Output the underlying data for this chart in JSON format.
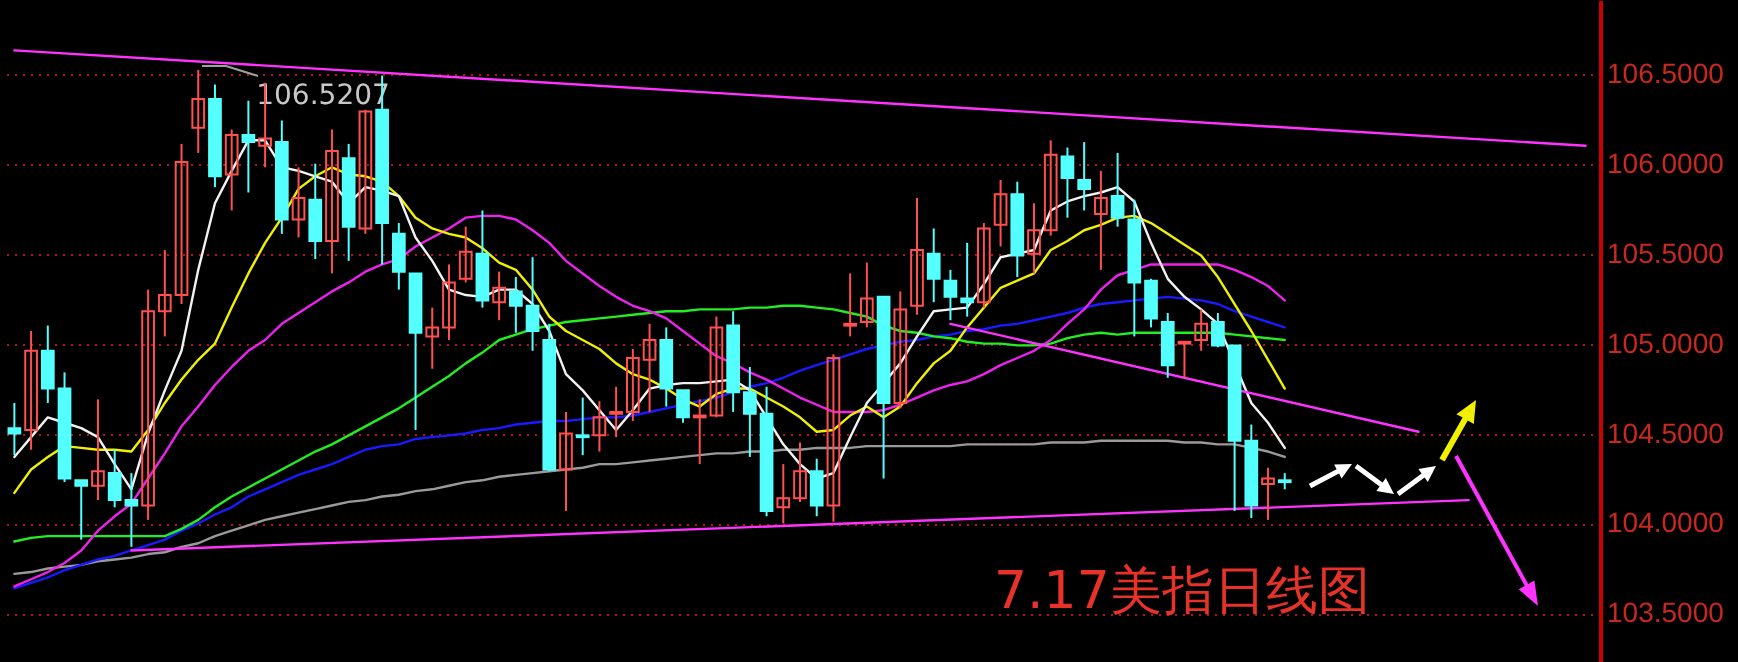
{
  "chart_data": {
    "type": "candlestick",
    "title": "7.17美指日线图",
    "categories": [
      null,
      null,
      null,
      null,
      null,
      null,
      null,
      null,
      null,
      null,
      null,
      null,
      null,
      null,
      null,
      null,
      null,
      null,
      null,
      null,
      null,
      null,
      null,
      null,
      null,
      null,
      null,
      null,
      null,
      null,
      null,
      null,
      null,
      null,
      null,
      null,
      null,
      null,
      null,
      null,
      null,
      null,
      null,
      null,
      null,
      null,
      null,
      null,
      null,
      null,
      null,
      null,
      null,
      null,
      null,
      null,
      null,
      null,
      null,
      null,
      null,
      null,
      null,
      null,
      null,
      null,
      null,
      null,
      null,
      null,
      null,
      null,
      null,
      null,
      null,
      null,
      null,
      null,
      null,
      null,
      null,
      null,
      null,
      null,
      null,
      null,
      null,
      null,
      null,
      null,
      null,
      null,
      null,
      null,
      null
    ],
    "ohlc": [
      [
        104.53,
        104.67,
        104.38,
        104.5
      ],
      [
        104.52,
        105.07,
        104.41,
        104.96
      ],
      [
        104.96,
        105.1,
        104.67,
        104.75
      ],
      [
        104.75,
        104.84,
        104.23,
        104.25
      ],
      [
        104.24,
        104.24,
        103.91,
        104.21
      ],
      [
        104.21,
        104.69,
        104.13,
        104.29
      ],
      [
        104.28,
        104.41,
        104.09,
        104.13
      ],
      [
        104.13,
        104.28,
        103.87,
        104.1
      ],
      [
        104.1,
        105.3,
        104.02,
        105.18
      ],
      [
        105.18,
        105.52,
        105.04,
        105.27
      ],
      [
        105.27,
        106.11,
        105.22,
        106.01
      ],
      [
        106.2,
        106.5207,
        106.06,
        106.36
      ],
      [
        106.36,
        106.44,
        105.87,
        105.93
      ],
      [
        105.94,
        106.19,
        105.74,
        106.16
      ],
      [
        106.16,
        106.35,
        105.84,
        106.12
      ],
      [
        106.1,
        106.45,
        105.98,
        106.14
      ],
      [
        106.12,
        106.24,
        105.61,
        105.69
      ],
      [
        105.69,
        105.98,
        105.59,
        105.81
      ],
      [
        105.8,
        106.0,
        105.47,
        105.57
      ],
      [
        105.57,
        106.19,
        105.39,
        106.07
      ],
      [
        106.03,
        106.11,
        105.46,
        105.65
      ],
      [
        105.64,
        106.3,
        105.61,
        106.29
      ],
      [
        106.3,
        106.49,
        105.44,
        105.67
      ],
      [
        105.61,
        105.67,
        105.3,
        105.4
      ],
      [
        105.39,
        105.39,
        104.52,
        105.06
      ],
      [
        105.04,
        105.2,
        104.86,
        105.09
      ],
      [
        105.09,
        105.44,
        105.02,
        105.34
      ],
      [
        105.36,
        105.65,
        105.34,
        105.51
      ],
      [
        105.5,
        105.74,
        105.2,
        105.24
      ],
      [
        105.23,
        105.4,
        105.13,
        105.31
      ],
      [
        105.29,
        105.37,
        105.06,
        105.21
      ],
      [
        105.21,
        105.48,
        104.96,
        105.07
      ],
      [
        105.02,
        105.11,
        104.29,
        104.3
      ],
      [
        104.3,
        104.62,
        104.07,
        104.5
      ],
      [
        104.49,
        104.7,
        104.38,
        104.48
      ],
      [
        104.49,
        104.68,
        104.4,
        104.59
      ],
      [
        104.61,
        104.76,
        104.48,
        104.62
      ],
      [
        104.62,
        104.97,
        104.57,
        104.92
      ],
      [
        104.91,
        105.11,
        104.62,
        105.02
      ],
      [
        105.02,
        105.09,
        104.65,
        104.75
      ],
      [
        104.74,
        104.74,
        104.56,
        104.59
      ],
      [
        104.59,
        104.69,
        104.33,
        104.6
      ],
      [
        104.6,
        105.15,
        104.59,
        105.09
      ],
      [
        105.1,
        105.18,
        104.62,
        104.73
      ],
      [
        104.73,
        104.87,
        104.37,
        104.61
      ],
      [
        104.61,
        104.76,
        104.04,
        104.07
      ],
      [
        104.09,
        104.33,
        104.0,
        104.14
      ],
      [
        104.14,
        104.45,
        104.12,
        104.29
      ],
      [
        104.29,
        104.36,
        104.04,
        104.1
      ],
      [
        104.1,
        104.94,
        104.01,
        104.92
      ],
      [
        105.1,
        105.39,
        105.04,
        105.11
      ],
      [
        105.12,
        105.45,
        105.09,
        105.25
      ],
      [
        105.26,
        105.26,
        104.25,
        104.67
      ],
      [
        104.67,
        105.29,
        104.64,
        105.19
      ],
      [
        105.21,
        105.81,
        105.16,
        105.52
      ],
      [
        105.5,
        105.64,
        105.23,
        105.36
      ],
      [
        105.35,
        105.41,
        105.13,
        105.26
      ],
      [
        105.25,
        105.56,
        105.15,
        105.23
      ],
      [
        105.23,
        105.67,
        105.2,
        105.64
      ],
      [
        105.66,
        105.91,
        105.54,
        105.83
      ],
      [
        105.83,
        105.9,
        105.37,
        105.49
      ],
      [
        105.5,
        105.78,
        105.39,
        105.63
      ],
      [
        105.63,
        106.13,
        105.6,
        106.05
      ],
      [
        106.04,
        106.09,
        105.7,
        105.92
      ],
      [
        105.91,
        106.12,
        105.74,
        105.86
      ],
      [
        105.72,
        105.96,
        105.41,
        105.81
      ],
      [
        105.82,
        106.06,
        105.65,
        105.7
      ],
      [
        105.69,
        105.8,
        105.04,
        105.34
      ],
      [
        105.35,
        105.36,
        105.09,
        105.14
      ],
      [
        105.12,
        105.17,
        104.81,
        104.88
      ],
      [
        105.0,
        105.01,
        104.81,
        105.01
      ],
      [
        105.02,
        105.19,
        104.96,
        105.11
      ],
      [
        105.12,
        105.17,
        104.98,
        104.99
      ],
      [
        104.99,
        104.99,
        104.07,
        104.46
      ],
      [
        104.46,
        104.55,
        104.03,
        104.1
      ],
      [
        104.22,
        104.31,
        104.02,
        104.25
      ],
      [
        104.24,
        104.28,
        104.19,
        104.23
      ],
      null,
      null,
      null,
      null,
      null,
      null,
      null,
      null,
      null,
      null,
      null,
      null,
      null,
      null,
      null,
      null,
      null,
      null
    ],
    "colors": [
      "#54ffff",
      "#ff5050",
      "#54ffff",
      "#54ffff",
      "#54ffff",
      "#ff5050",
      "#54ffff",
      "#54ffff",
      "#ff5050",
      "#ff5050",
      "#ff5050",
      "#ff5050",
      "#54ffff",
      "#ff5050",
      "#54ffff",
      "#ff5050",
      "#54ffff",
      "#ff5050",
      "#54ffff",
      "#ff5050",
      "#54ffff",
      "#ff5050",
      "#54ffff",
      "#54ffff",
      "#54ffff",
      "#ff5050",
      "#ff5050",
      "#ff5050",
      "#54ffff",
      "#ff5050",
      "#54ffff",
      "#54ffff",
      "#54ffff",
      "#ff5050",
      "#54ffff",
      "#ff5050",
      "#ff5050",
      "#ff5050",
      "#ff5050",
      "#54ffff",
      "#54ffff",
      "#ff5050",
      "#ff5050",
      "#54ffff",
      "#54ffff",
      "#54ffff",
      "#ff5050",
      "#ff5050",
      "#54ffff",
      "#ff5050",
      "#ff5050",
      "#ff5050",
      "#54ffff",
      "#ff5050",
      "#ff5050",
      "#54ffff",
      "#54ffff",
      "#54ffff",
      "#ff5050",
      "#ff5050",
      "#54ffff",
      "#ff5050",
      "#ff5050",
      "#54ffff",
      "#54ffff",
      "#ff5050",
      "#54ffff",
      "#54ffff",
      "#54ffff",
      "#54ffff",
      "#ff5050",
      "#ff5050",
      "#54ffff",
      "#54ffff",
      "#54ffff",
      "#ff5050",
      "#54ffff",
      null,
      null,
      null,
      null,
      null,
      null,
      null,
      null,
      null,
      null,
      null,
      null,
      null,
      null,
      null,
      null,
      null,
      null
    ],
    "series": [
      {
        "type": "line",
        "color": "#9a9a9a",
        "values": [
          103.72,
          103.73,
          103.75,
          103.76,
          103.77,
          103.79,
          103.8,
          103.81,
          103.83,
          103.84,
          103.87,
          103.89,
          103.93,
          103.96,
          103.99,
          104.02,
          104.04,
          104.06,
          104.08,
          104.1,
          104.12,
          104.13,
          104.15,
          104.16,
          104.18,
          104.19,
          104.21,
          104.23,
          104.24,
          104.26,
          104.27,
          104.28,
          104.29,
          104.3,
          104.31,
          104.33,
          104.33,
          104.34,
          104.35,
          104.36,
          104.37,
          104.38,
          104.39,
          104.39,
          104.4,
          104.4,
          104.41,
          104.41,
          104.42,
          104.42,
          104.42,
          104.43,
          104.43,
          104.43,
          104.43,
          104.43,
          104.43,
          104.44,
          104.44,
          104.44,
          104.44,
          104.44,
          104.45,
          104.45,
          104.45,
          104.46,
          104.46,
          104.46,
          104.46,
          104.46,
          104.45,
          104.45,
          104.44,
          104.44,
          104.42,
          104.4,
          104.37,
          null,
          null,
          null,
          null,
          null,
          null,
          null,
          null,
          null,
          null,
          null,
          null,
          null,
          null,
          null,
          null,
          null,
          null
        ]
      },
      {
        "type": "line",
        "color": "#1a1aff",
        "values": [
          103.64,
          103.67,
          103.7,
          103.74,
          103.77,
          103.8,
          103.82,
          103.85,
          103.88,
          103.91,
          103.96,
          104.0,
          104.05,
          104.09,
          104.15,
          104.19,
          104.23,
          104.27,
          104.3,
          104.33,
          104.37,
          104.41,
          104.43,
          104.44,
          104.47,
          104.48,
          104.49,
          104.5,
          104.52,
          104.53,
          104.55,
          104.56,
          104.57,
          104.57,
          104.58,
          104.59,
          104.59,
          104.6,
          104.62,
          104.64,
          104.66,
          104.68,
          104.7,
          104.73,
          104.76,
          104.78,
          104.81,
          104.85,
          104.88,
          104.91,
          104.94,
          104.97,
          104.99,
          105.01,
          105.02,
          105.04,
          105.05,
          105.07,
          105.08,
          105.1,
          105.11,
          105.13,
          105.15,
          105.17,
          105.2,
          105.22,
          105.23,
          105.24,
          105.25,
          105.26,
          105.25,
          105.24,
          105.22,
          105.18,
          105.15,
          105.12,
          105.09,
          null,
          null,
          null,
          null,
          null,
          null,
          null,
          null,
          null,
          null,
          null,
          null,
          null,
          null,
          null,
          null,
          null,
          null
        ]
      },
      {
        "type": "line",
        "color": "#22ee22",
        "values": [
          103.9,
          103.92,
          103.93,
          103.93,
          103.93,
          103.93,
          103.93,
          103.93,
          103.93,
          103.93,
          103.97,
          104.02,
          104.09,
          104.15,
          104.2,
          104.25,
          104.3,
          104.35,
          104.4,
          104.44,
          104.49,
          104.54,
          104.59,
          104.64,
          104.7,
          104.76,
          104.82,
          104.89,
          104.95,
          105.02,
          105.05,
          105.08,
          105.1,
          105.12,
          105.13,
          105.14,
          105.15,
          105.16,
          105.17,
          105.18,
          105.18,
          105.19,
          105.19,
          105.19,
          105.2,
          105.2,
          105.21,
          105.21,
          105.2,
          105.19,
          105.17,
          105.15,
          105.1,
          105.07,
          105.06,
          105.04,
          105.03,
          105.01,
          105.0,
          105.0,
          104.99,
          104.99,
          105.0,
          105.03,
          105.05,
          105.06,
          105.05,
          105.06,
          105.06,
          105.06,
          105.06,
          105.06,
          105.06,
          105.05,
          105.04,
          105.03,
          105.02,
          null,
          null,
          null,
          null,
          null,
          null,
          null,
          null,
          null,
          null,
          null,
          null,
          null,
          null,
          null,
          null,
          null,
          null
        ]
      },
      {
        "type": "line",
        "color": "#ee22ee",
        "values": [
          103.65,
          103.69,
          103.73,
          103.78,
          103.85,
          103.96,
          104.04,
          104.11,
          104.25,
          104.39,
          104.54,
          104.65,
          104.77,
          104.87,
          104.96,
          105.02,
          105.11,
          105.17,
          105.23,
          105.29,
          105.34,
          105.4,
          105.44,
          105.47,
          105.54,
          105.59,
          105.64,
          105.7,
          105.71,
          105.71,
          105.69,
          105.63,
          105.56,
          105.46,
          105.39,
          105.32,
          105.26,
          105.21,
          105.18,
          105.14,
          105.07,
          105.0,
          104.93,
          104.89,
          104.84,
          104.8,
          104.75,
          104.7,
          104.66,
          104.62,
          104.62,
          104.62,
          104.63,
          104.66,
          104.7,
          104.74,
          104.77,
          104.79,
          104.83,
          104.88,
          104.92,
          104.96,
          105.02,
          105.11,
          105.19,
          105.3,
          105.38,
          105.41,
          105.44,
          105.44,
          105.44,
          105.44,
          105.44,
          105.41,
          105.37,
          105.32,
          105.24,
          null,
          null,
          null,
          null,
          null,
          null,
          null,
          null,
          null,
          null,
          null,
          null,
          null,
          null,
          null,
          null,
          null,
          null
        ]
      },
      {
        "type": "line",
        "color": "#f0f000",
        "values": [
          104.17,
          104.3,
          104.37,
          104.43,
          104.42,
          104.41,
          104.41,
          104.4,
          104.52,
          104.67,
          104.8,
          104.91,
          105.0,
          105.2,
          105.39,
          105.56,
          105.7,
          105.86,
          105.93,
          105.98,
          105.94,
          105.93,
          105.9,
          105.82,
          105.7,
          105.64,
          105.61,
          105.59,
          105.53,
          105.45,
          105.41,
          105.3,
          105.15,
          105.07,
          105.02,
          104.97,
          104.89,
          104.83,
          104.8,
          104.75,
          104.69,
          104.65,
          104.72,
          104.75,
          104.75,
          104.7,
          104.65,
          104.59,
          104.51,
          104.52,
          104.6,
          104.65,
          104.59,
          104.65,
          104.78,
          104.89,
          104.96,
          105.09,
          105.2,
          105.31,
          105.35,
          105.39,
          105.52,
          105.57,
          105.63,
          105.66,
          105.7,
          105.71,
          105.67,
          105.61,
          105.55,
          105.49,
          105.37,
          105.22,
          105.07,
          104.91,
          104.75,
          null,
          null,
          null,
          null,
          null,
          null,
          null,
          null,
          null,
          null,
          null,
          null,
          null,
          null,
          null,
          null,
          null,
          null
        ]
      },
      {
        "type": "line",
        "color": "#f2f2f2",
        "values": [
          104.37,
          104.48,
          104.59,
          104.56,
          104.53,
          104.48,
          104.33,
          104.19,
          104.5,
          104.74,
          104.96,
          105.41,
          105.78,
          105.96,
          106.13,
          106.13,
          105.98,
          105.96,
          105.93,
          105.9,
          105.78,
          105.87,
          105.85,
          105.82,
          105.59,
          105.46,
          105.3,
          105.27,
          105.26,
          105.3,
          105.3,
          105.22,
          105.07,
          104.83,
          104.74,
          104.63,
          104.52,
          104.63,
          104.75,
          104.77,
          104.78,
          104.78,
          104.79,
          104.8,
          104.74,
          104.59,
          104.44,
          104.33,
          104.25,
          104.28,
          104.48,
          104.67,
          104.78,
          104.89,
          105.04,
          105.18,
          105.19,
          105.2,
          105.33,
          105.48,
          105.5,
          105.52,
          105.74,
          105.79,
          105.82,
          105.84,
          105.87,
          105.79,
          105.56,
          105.36,
          105.26,
          105.19,
          105.11,
          null,
          104.67,
          104.56,
          104.42,
          null,
          null,
          null,
          null,
          null,
          null,
          null,
          null,
          null,
          null,
          null,
          null,
          null,
          null,
          null,
          null,
          null,
          null
        ]
      },
      {
        "type": "line",
        "color": "#ff33ff",
        "values": [
          106.63,
          null,
          null,
          null,
          null,
          null,
          null,
          null,
          null,
          null,
          null,
          null,
          null,
          null,
          null,
          null,
          null,
          null,
          null,
          null,
          null,
          null,
          null,
          null,
          null,
          null,
          null,
          null,
          null,
          null,
          null,
          null,
          null,
          null,
          null,
          null,
          null,
          null,
          null,
          null,
          null,
          null,
          null,
          null,
          null,
          null,
          null,
          null,
          null,
          null,
          null,
          null,
          null,
          null,
          null,
          null,
          null,
          null,
          null,
          null,
          null,
          null,
          null,
          null,
          null,
          null,
          null,
          null,
          null,
          null,
          null,
          null,
          null,
          null,
          null,
          null,
          null,
          null,
          null,
          null,
          null,
          null,
          null,
          null,
          null,
          null,
          null,
          null,
          null,
          null,
          null,
          null,
          null,
          null,
          106.1
        ]
      },
      {
        "type": "line",
        "color": "#ff33ff",
        "values": [
          null,
          null,
          null,
          null,
          null,
          null,
          null,
          103.85,
          null,
          null,
          null,
          null,
          null,
          null,
          null,
          null,
          null,
          null,
          null,
          null,
          null,
          null,
          null,
          null,
          null,
          null,
          null,
          null,
          null,
          null,
          null,
          null,
          null,
          null,
          null,
          null,
          null,
          null,
          null,
          null,
          null,
          null,
          null,
          null,
          null,
          null,
          null,
          null,
          null,
          null,
          null,
          null,
          null,
          null,
          null,
          null,
          null,
          null,
          null,
          null,
          null,
          null,
          null,
          null,
          null,
          null,
          null,
          null,
          null,
          null,
          null,
          null,
          null,
          null,
          null,
          null,
          null,
          null,
          null,
          null,
          null,
          null,
          null,
          null,
          null,
          null,
          null,
          104.13,
          null,
          null,
          null,
          null,
          null,
          null,
          null
        ]
      },
      {
        "type": "line",
        "color": "#ff33ff",
        "values": [
          null,
          null,
          null,
          null,
          null,
          null,
          null,
          null,
          null,
          null,
          null,
          null,
          null,
          null,
          null,
          null,
          null,
          null,
          null,
          null,
          null,
          null,
          null,
          null,
          null,
          null,
          null,
          null,
          null,
          null,
          null,
          null,
          null,
          null,
          null,
          null,
          null,
          null,
          null,
          null,
          null,
          null,
          null,
          null,
          null,
          null,
          null,
          null,
          null,
          null,
          null,
          null,
          null,
          null,
          null,
          null,
          105.11,
          null,
          null,
          null,
          null,
          null,
          null,
          null,
          null,
          null,
          null,
          null,
          null,
          null,
          null,
          null,
          null,
          null,
          null,
          null,
          null,
          null,
          null,
          null,
          null,
          null,
          null,
          null,
          104.51,
          null,
          null,
          null,
          null,
          null,
          null,
          null,
          null,
          null,
          null
        ]
      }
    ],
    "ylim": [
      103.23,
      106.91
    ],
    "yticks": [
      {
        "value": 103.5,
        "label": "103.5000"
      },
      {
        "value": 104,
        "label": "104.0000"
      },
      {
        "value": 104.5,
        "label": "104.5000"
      },
      {
        "value": 105,
        "label": "105.0000"
      },
      {
        "value": 105.5,
        "label": "105.5000"
      },
      {
        "value": 106,
        "label": "106.0000"
      },
      {
        "value": 106.5,
        "label": "106.5000"
      }
    ],
    "grid": "y",
    "tick_labels": "y",
    "annotations": [
      {
        "text": "106.5207",
        "y": 106.5207
      }
    ]
  }
}
